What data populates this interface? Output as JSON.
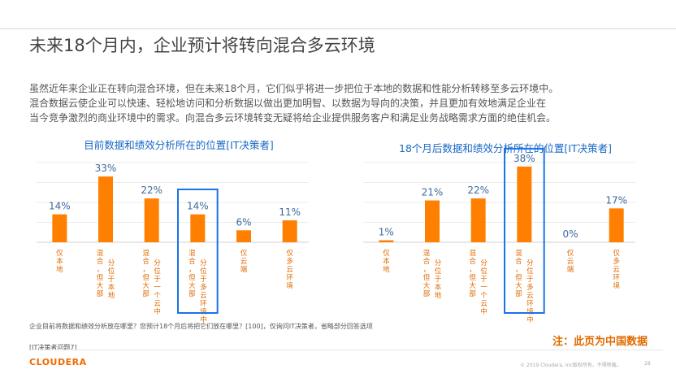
{
  "title": "未来18个月内，企业预计将转向混合多云环境",
  "paragraph": [
    "虽然近年来企业正在转向混合环境，但在未来18个月，它们似乎将进一步把位于本地的数据和性能分析转移至多云环境中。",
    "混合数据云使企业可以快速、轻松地访问和分析数据以做出更加明智、以数据为导向的决策，并且更加有效地满足企业在",
    "当今竞争激烈的商业环境中的需求。向混合多云环境转变无疑将给企业提供服务客户和满足业务战略需求方面的绝佳机会。"
  ],
  "colors": {
    "bar": "#ff7f00",
    "highlight_box": "#1a73e8",
    "title_blue": "#1767c4",
    "note": "#e06a00",
    "logo": "#f06a00"
  },
  "chart_data": [
    {
      "type": "bar",
      "title": "目前数据和绩效分析所在的位置[IT决策者]",
      "categories": [
        "仅本地",
        "混合，但大部分位于本地",
        "混合，但大部分位于一个云中",
        "混合，但大部分位于多云环境中",
        "仅云端",
        "仅多云环境"
      ],
      "values": [
        14,
        33,
        22,
        14,
        6,
        11
      ],
      "value_labels": [
        "14%",
        "33%",
        "22%",
        "14%",
        "6%",
        "11%"
      ],
      "highlighted_category_index": 3,
      "ylim": [
        0,
        40
      ],
      "grid": true
    },
    {
      "type": "bar",
      "title": "18个月后数据和绩效分析所在的位置[IT决策者]",
      "categories": [
        "仅本地",
        "混合，但大部分位于本地",
        "混合，但大部分位于一个云中",
        "混合，但大部分位于多云环境中",
        "仅云端",
        "仅多云环境"
      ],
      "values": [
        1,
        21,
        22,
        38,
        0,
        17
      ],
      "value_labels": [
        "1%",
        "21%",
        "22%",
        "38%",
        "0%",
        "17%"
      ],
      "highlighted_category_index": 3,
      "ylim": [
        0,
        40
      ],
      "grid": true
    }
  ],
  "footnote": "企业目前将数据和绩效分析放在哪里？您预计18个月后将把它们放在哪里？[100]，仅询问IT决策者，省略部分回答选项",
  "reference": "[IT决策者问题7]",
  "note": "注：此页为中国数据",
  "logo": "CLOUDERA",
  "copyright": "© 2019 Cloudera, Inc版权所有，不得转载。",
  "page_number": "28"
}
